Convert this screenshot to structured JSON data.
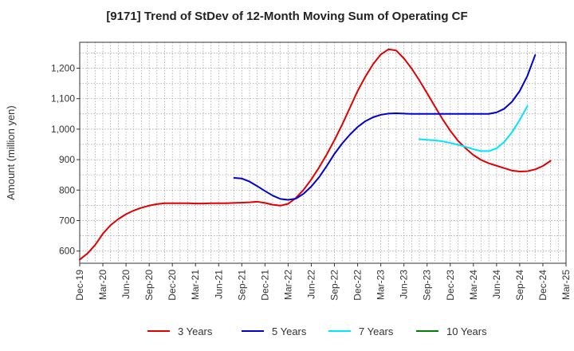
{
  "chart_data": {
    "type": "line",
    "title": "[9171]  Trend of StDev of 12-Month Moving Sum of Operating CF",
    "ylabel": "Amount (million yen)",
    "xlabel": "",
    "ylim": [
      560,
      1285
    ],
    "yticks": [
      600,
      700,
      800,
      900,
      "1,000",
      "1,100",
      "1,200"
    ],
    "ytick_values": [
      600,
      700,
      800,
      900,
      1000,
      1100,
      1200
    ],
    "x_start": "2019-12",
    "x_end": "2025-03",
    "xticks": [
      "Dec-19",
      "Mar-20",
      "Jun-20",
      "Sep-20",
      "Dec-20",
      "Mar-21",
      "Jun-21",
      "Sep-21",
      "Dec-21",
      "Mar-22",
      "Jun-22",
      "Sep-22",
      "Dec-22",
      "Mar-23",
      "Jun-23",
      "Sep-23",
      "Dec-23",
      "Mar-24",
      "Jun-24",
      "Sep-24",
      "Dec-24",
      "Mar-25"
    ],
    "grid": true,
    "legend_position": "bottom",
    "series": [
      {
        "name": "3 Years",
        "color": "#e00000",
        "start": "2019-12",
        "values": [
          572,
          592,
          620,
          657,
          685,
          705,
          721,
          733,
          742,
          749,
          754,
          757,
          757,
          757,
          757,
          756,
          756,
          757,
          757,
          757,
          758,
          759,
          760,
          762,
          758,
          752,
          749,
          755,
          774,
          801,
          835,
          874,
          917,
          964,
          1015,
          1070,
          1125,
          1172,
          1213,
          1245,
          1262,
          1258,
          1232,
          1199,
          1160,
          1118,
          1075,
          1033,
          995,
          962,
          937,
          915,
          899,
          888,
          880,
          872,
          864,
          861,
          862,
          868,
          879,
          896
        ]
      },
      {
        "name": "5 Years",
        "color": "#0000d0",
        "start": "2021-08",
        "values": [
          840,
          838,
          828,
          813,
          797,
          782,
          771,
          768,
          772,
          788,
          812,
          842,
          879,
          919,
          953,
          982,
          1007,
          1026,
          1039,
          1047,
          1051,
          1052,
          1051,
          1050,
          1050,
          1050,
          1050,
          1050,
          1050,
          1050,
          1050,
          1050,
          1050,
          1050,
          1055,
          1067,
          1090,
          1125,
          1175,
          1243
        ]
      },
      {
        "name": "7 Years",
        "color": "#00e5ff",
        "start": "2023-08",
        "values": [
          967,
          965,
          963,
          960,
          955,
          949,
          942,
          934,
          928,
          928,
          937,
          958,
          990,
          1030,
          1076
        ]
      },
      {
        "name": "10 Years",
        "color": "#008000",
        "start": "2024-09",
        "values": []
      }
    ]
  }
}
